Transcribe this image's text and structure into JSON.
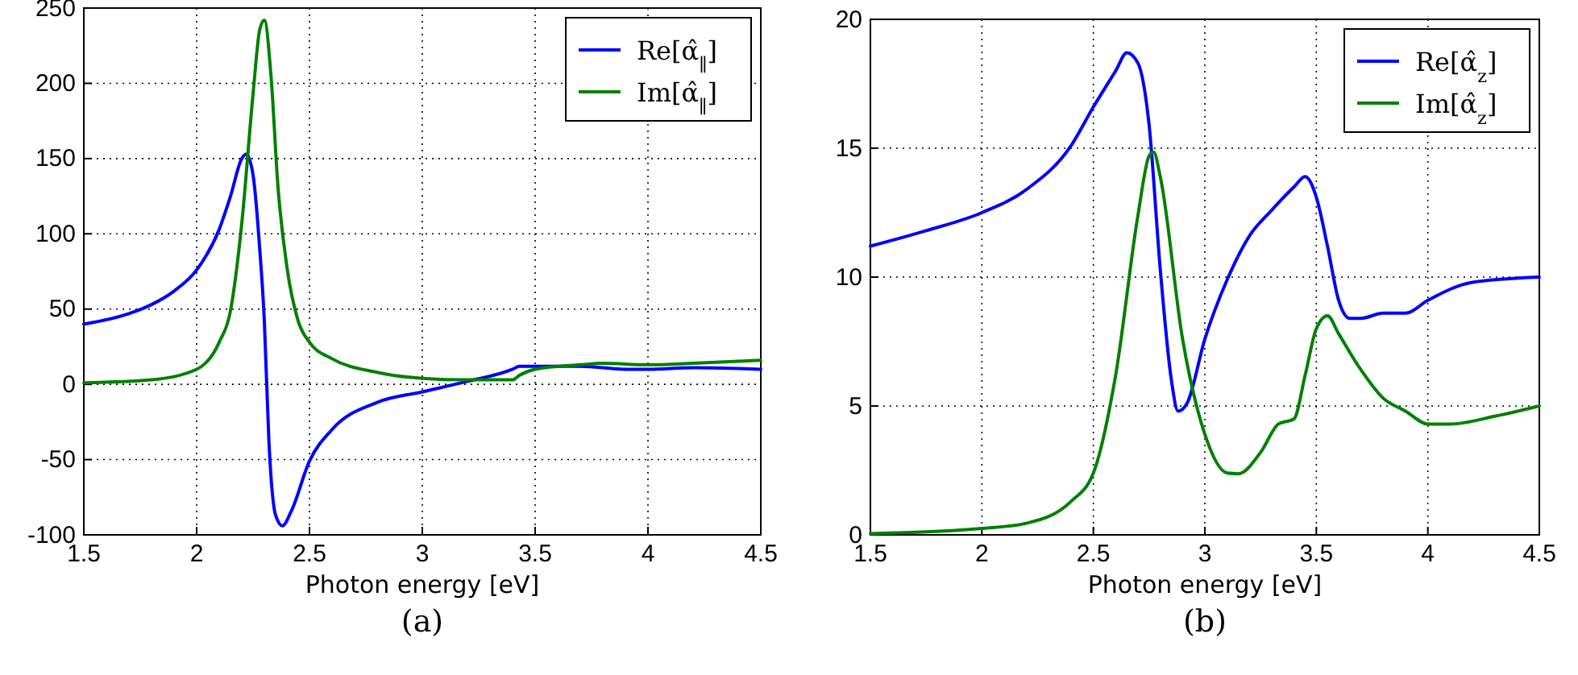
{
  "chart_data": [
    {
      "type": "line",
      "xlabel": "Photon energy [eV]",
      "xlim": [
        1.5,
        4.5
      ],
      "xticks": [
        1.5,
        2.0,
        2.5,
        3.0,
        3.5,
        4.0,
        4.5
      ],
      "ylim": [
        -100,
        250
      ],
      "yticks": [
        -100,
        -50,
        0,
        50,
        100,
        150,
        200,
        250
      ],
      "grid": true,
      "legend": "top right",
      "line_style": "solid",
      "annotations": [
        "(a)"
      ],
      "series": [
        {
          "name": "Re[α̂$_{∥}$]",
          "color": "#0000ff",
          "x": [
            1.5,
            1.7,
            1.8,
            1.9,
            2.0,
            2.1,
            2.15,
            2.2,
            2.22,
            2.25,
            2.28,
            2.3,
            2.32,
            2.35,
            2.38,
            2.42,
            2.5,
            2.6,
            2.8,
            3.0,
            3.2,
            3.4,
            3.43,
            3.5,
            3.7,
            3.9,
            4.0,
            4.2,
            4.5
          ],
          "values": [
            40,
            47,
            53,
            62,
            76,
            103,
            125,
            150,
            153,
            139,
            89,
            42,
            -37,
            -87,
            -94,
            -84,
            -51,
            -30,
            -12,
            -5,
            2,
            10,
            12,
            12,
            12,
            10,
            10,
            11,
            10
          ]
        },
        {
          "name": "Im[α̂$_{∥}$]",
          "color": "#008000",
          "x": [
            1.5,
            1.8,
            2.0,
            2.1,
            2.15,
            2.2,
            2.25,
            2.28,
            2.3,
            2.33,
            2.36,
            2.4,
            2.45,
            2.5,
            2.6,
            2.8,
            3.0,
            3.2,
            3.4,
            3.43,
            3.5,
            3.7,
            3.8,
            4.0,
            4.2,
            4.5
          ],
          "values": [
            1,
            3,
            10,
            28,
            49,
            107,
            193,
            236,
            242,
            204,
            132,
            78,
            42,
            28,
            17,
            8,
            4,
            3,
            3,
            6,
            10,
            13,
            14,
            13,
            14,
            16
          ]
        }
      ]
    },
    {
      "type": "line",
      "xlabel": "Photon energy [eV]",
      "xlim": [
        1.5,
        4.5
      ],
      "xticks": [
        1.5,
        2.0,
        2.5,
        3.0,
        3.5,
        4.0,
        4.5
      ],
      "ylim": [
        0,
        20
      ],
      "yticks": [
        0,
        5,
        10,
        15,
        20
      ],
      "grid": true,
      "legend": "top right",
      "line_style": "solid",
      "annotations": [
        "(b)"
      ],
      "series": [
        {
          "name": "Re[α̂$_{z}$]",
          "color": "#0000ff",
          "x": [
            1.5,
            1.75,
            2.0,
            2.2,
            2.4,
            2.5,
            2.6,
            2.65,
            2.7,
            2.75,
            2.8,
            2.85,
            2.88,
            2.92,
            3.0,
            3.1,
            3.2,
            3.3,
            3.4,
            3.45,
            3.5,
            3.55,
            3.6,
            3.65,
            3.7,
            3.8,
            3.9,
            4.0,
            4.2,
            4.5
          ],
          "values": [
            11.2,
            11.8,
            12.5,
            13.4,
            15.1,
            16.6,
            18.0,
            18.7,
            18.3,
            15.9,
            10.3,
            6.0,
            4.8,
            5.1,
            7.6,
            9.9,
            11.6,
            12.6,
            13.5,
            13.9,
            13.1,
            11.2,
            9.1,
            8.4,
            8.4,
            8.6,
            8.6,
            9.1,
            9.8,
            10.0
          ]
        },
        {
          "name": "Im[α̂$_{z}$]",
          "color": "#008000",
          "x": [
            1.5,
            2.0,
            2.2,
            2.4,
            2.5,
            2.6,
            2.7,
            2.75,
            2.77,
            2.8,
            2.9,
            3.0,
            3.1,
            3.15,
            3.25,
            3.33,
            3.4,
            3.45,
            3.5,
            3.55,
            3.6,
            3.7,
            3.8,
            3.9,
            4.0,
            4.1,
            4.3,
            4.5
          ],
          "values": [
            0.05,
            0.25,
            0.45,
            1.3,
            2.4,
            6.2,
            12.4,
            14.7,
            14.85,
            13.9,
            7.6,
            3.9,
            2.4,
            2.37,
            3.2,
            4.3,
            4.5,
            6.2,
            8.0,
            8.5,
            7.8,
            6.4,
            5.3,
            4.8,
            4.3,
            4.3,
            4.6,
            5.0
          ]
        }
      ]
    }
  ]
}
